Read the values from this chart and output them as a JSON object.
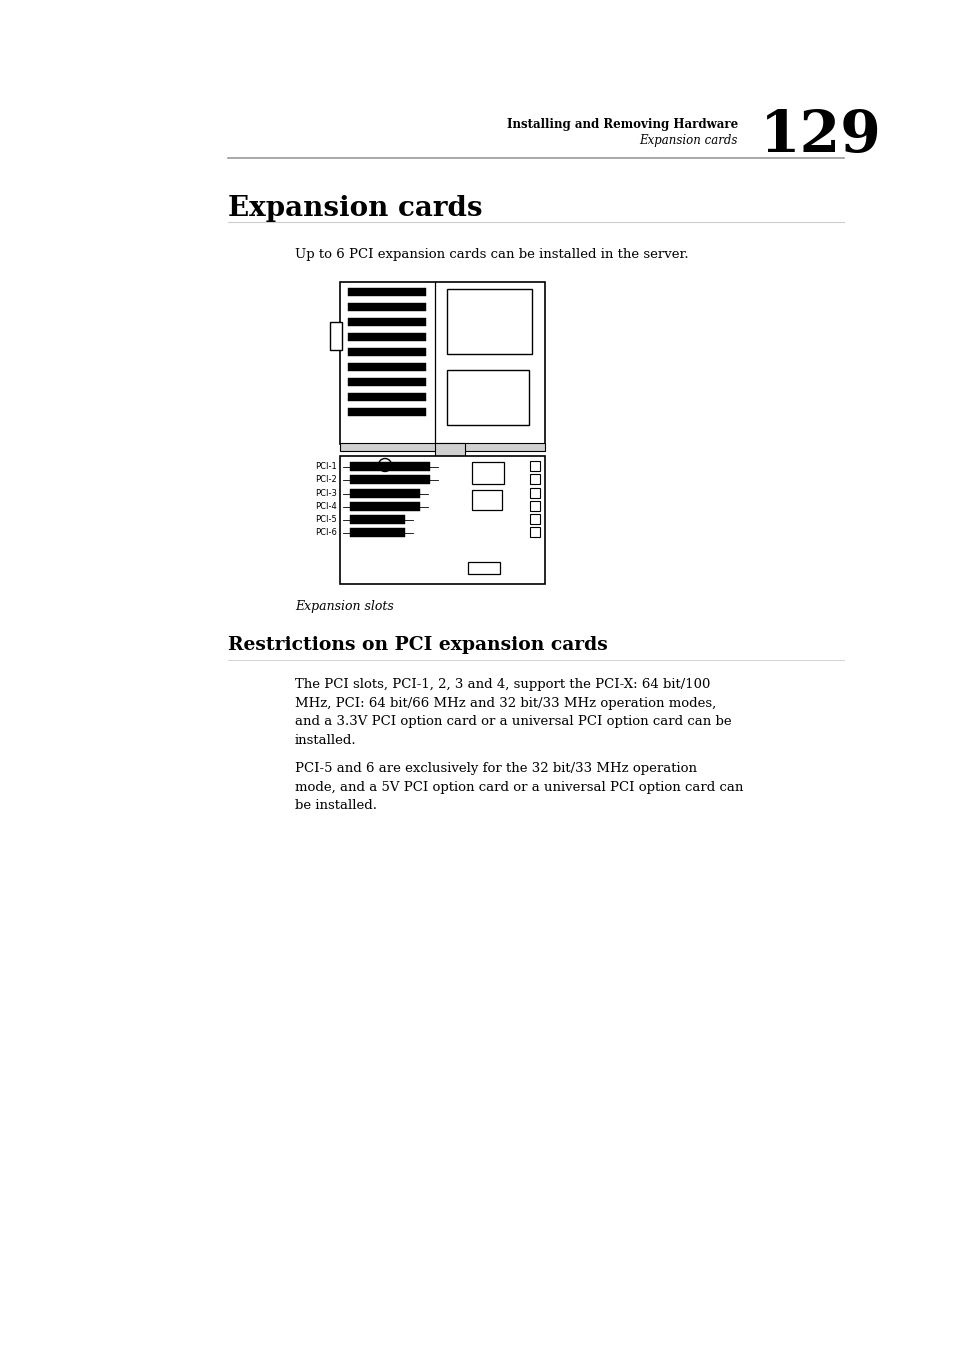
{
  "header_right_bold": "Installing and Removing Hardware",
  "header_right_italic": "Expansion cards",
  "header_page": "129",
  "title": "Expansion cards",
  "intro_text": "Up to 6 PCI expansion cards can be installed in the server.",
  "caption": "Expansion slots",
  "section2_title": "Restrictions on PCI expansion cards",
  "para1": "The PCI slots, PCI-1, 2, 3 and 4, support the PCI-X: 64 bit/100\nMHz, PCI: 64 bit/66 MHz and 32 bit/33 MHz operation modes,\nand a 3.3V PCI option card or a universal PCI option card can be\ninstalled.",
  "para2": "PCI-5 and 6 are exclusively for the 32 bit/33 MHz operation\nmode, and a 5V PCI option card or a universal PCI option card can\nbe installed.",
  "bg_color": "#ffffff",
  "text_color": "#000000",
  "header_line_color": "#999999",
  "pci_labels": [
    "PCI-1",
    "PCI-2",
    "PCI-3",
    "PCI-4",
    "PCI-5",
    "PCI-6"
  ]
}
